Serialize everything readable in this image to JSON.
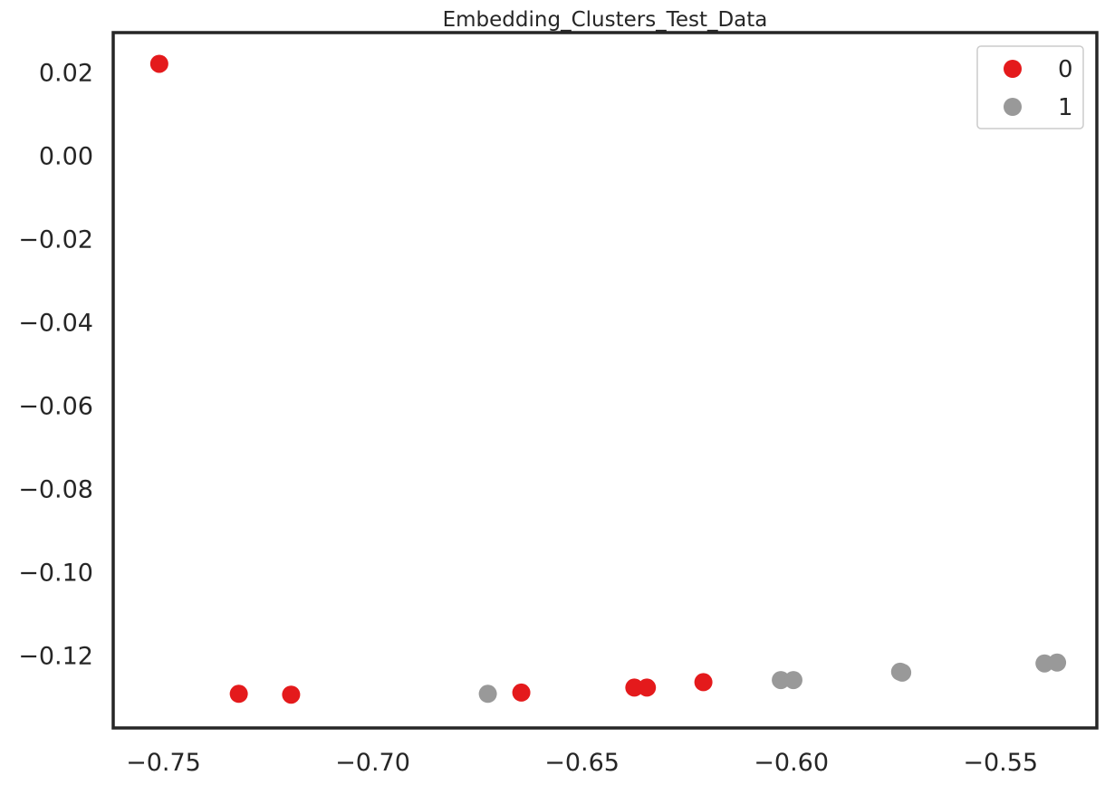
{
  "chart_data": {
    "type": "scatter",
    "title": "Embedding_Clusters_Test_Data",
    "xlabel": "",
    "ylabel": "",
    "xlim": [
      -0.762,
      -0.527
    ],
    "ylim": [
      -0.1375,
      0.0295
    ],
    "xticks": [
      -0.75,
      -0.7,
      -0.65,
      -0.6,
      -0.55
    ],
    "xtick_labels": [
      "−0.75",
      "−0.70",
      "−0.65",
      "−0.60",
      "−0.55"
    ],
    "yticks": [
      0.02,
      0.0,
      -0.02,
      -0.04,
      -0.06,
      -0.08,
      -0.1,
      -0.12
    ],
    "ytick_labels": [
      "0.02",
      "0.00",
      "−0.02",
      "−0.04",
      "−0.06",
      "−0.08",
      "−0.10",
      "−0.12"
    ],
    "grid": false,
    "legend_position": "top-right",
    "series": [
      {
        "name": "0",
        "color": "#e41a1c",
        "points": [
          {
            "x": -0.751,
            "y": 0.022
          },
          {
            "x": -0.732,
            "y": -0.1293
          },
          {
            "x": -0.7195,
            "y": -0.1295
          },
          {
            "x": -0.6645,
            "y": -0.129
          },
          {
            "x": -0.6375,
            "y": -0.1278
          },
          {
            "x": -0.6345,
            "y": -0.1278
          },
          {
            "x": -0.621,
            "y": -0.1265
          }
        ]
      },
      {
        "name": "1",
        "color": "#999999",
        "points": [
          {
            "x": -0.6725,
            "y": -0.1293
          },
          {
            "x": -0.6025,
            "y": -0.126
          },
          {
            "x": -0.5995,
            "y": -0.126
          },
          {
            "x": -0.574,
            "y": -0.124
          },
          {
            "x": -0.5735,
            "y": -0.1242
          },
          {
            "x": -0.5395,
            "y": -0.122
          },
          {
            "x": -0.5365,
            "y": -0.1218
          }
        ]
      }
    ]
  }
}
